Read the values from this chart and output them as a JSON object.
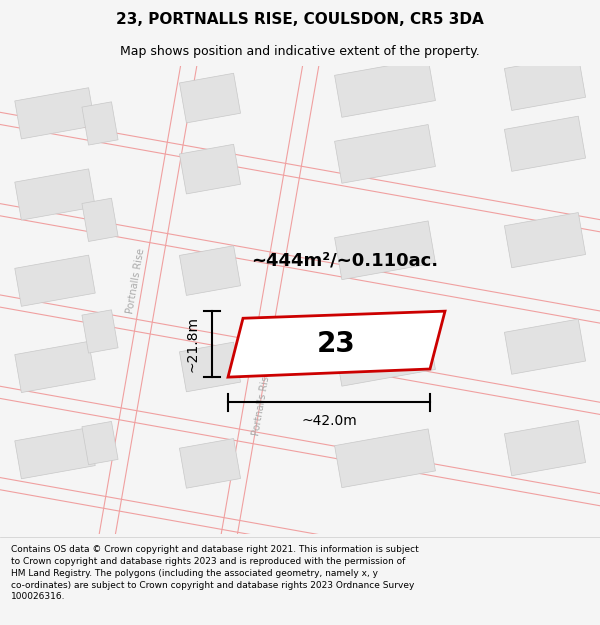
{
  "title": "23, PORTNALLS RISE, COULSDON, CR5 3DA",
  "subtitle": "Map shows position and indicative extent of the property.",
  "footer": "Contains OS data © Crown copyright and database right 2021. This information is subject to Crown copyright and database rights 2023 and is reproduced with the permission of HM Land Registry. The polygons (including the associated geometry, namely x, y co-ordinates) are subject to Crown copyright and database rights 2023 Ordnance Survey 100026316.",
  "area_label": "~444m²/~0.110ac.",
  "width_label": "~42.0m",
  "height_label": "~21.8m",
  "plot_number": "23",
  "street_label": "Portnalls Rise",
  "bg_color": "#f5f5f5",
  "map_bg": "#ffffff",
  "building_fill": "#e2e2e2",
  "building_edge": "#c8c8c8",
  "plot_edge_color": "#cc0000",
  "road_line_color": "#f0a0a0",
  "dim_line_color": "#000000",
  "title_fontsize": 11,
  "subtitle_fontsize": 9,
  "footer_fontsize": 6.5
}
